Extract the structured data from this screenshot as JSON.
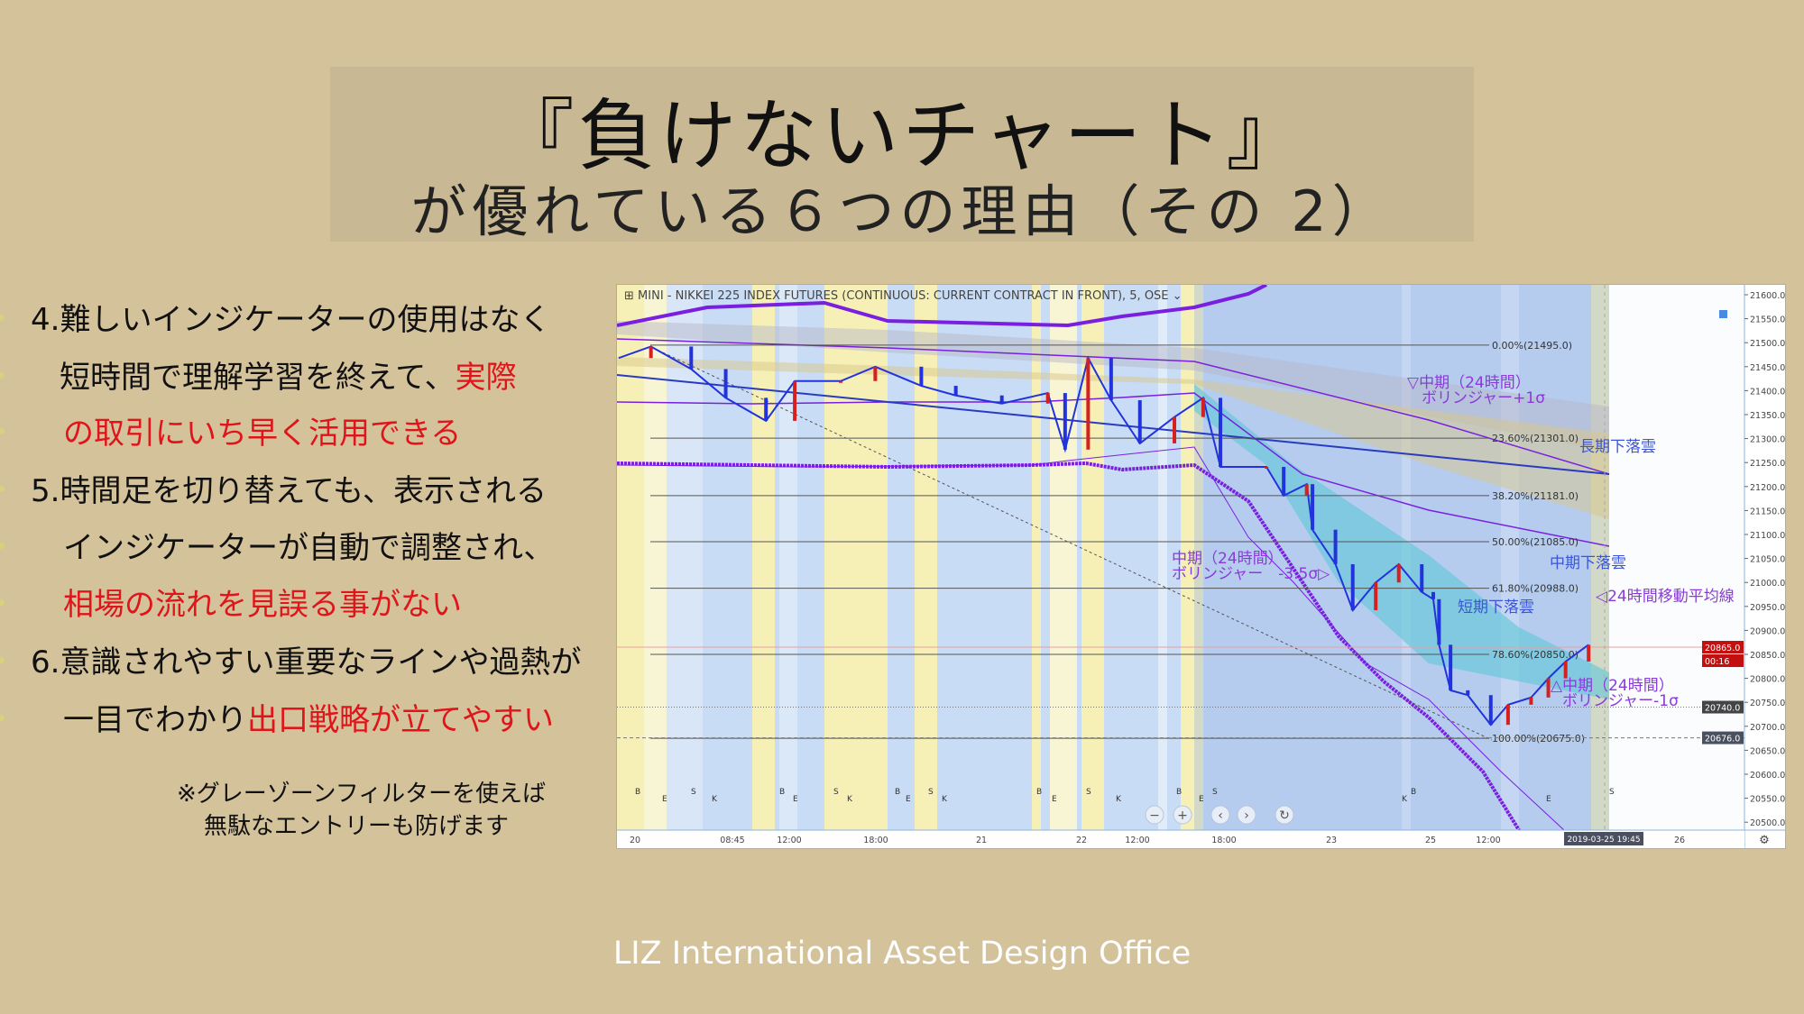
{
  "slide": {
    "title": "『負けないチャート』",
    "subtitle": "が優れている６つの理由（その 2）",
    "points": [
      {
        "parts": [
          {
            "text": "4.難しいインジケーターの使用はなく",
            "highlight": false
          }
        ]
      },
      {
        "parts": [
          {
            "text": "短時間で理解学習を終えて、",
            "highlight": false
          },
          {
            "text": "実際",
            "highlight": true
          }
        ]
      },
      {
        "parts": [
          {
            "text": "の取引にいち早く活用できる",
            "highlight": true
          }
        ]
      },
      {
        "parts": [
          {
            "text": "5.時間足を切り替えても、表示される",
            "highlight": false
          }
        ]
      },
      {
        "parts": [
          {
            "text": "インジケーターが自動で調整され、",
            "highlight": false
          }
        ]
      },
      {
        "parts": [
          {
            "text": "相場の流れを見誤る事がない",
            "highlight": true
          }
        ]
      },
      {
        "parts": [
          {
            "text": "6.意識されやすい重要なラインや過熱が",
            "highlight": false
          }
        ]
      },
      {
        "parts": [
          {
            "text": "一目でわかり",
            "highlight": false
          },
          {
            "text": "出口戦略が立てやすい",
            "highlight": true
          }
        ]
      }
    ],
    "note_line1": "※グレーゾーンフィルターを使えば",
    "note_line2": "無駄なエントリーも防げます",
    "footer": "LIZ International Asset Design Office",
    "colors": {
      "background": "#d4c29b",
      "highlight": "#e0141b",
      "title_box": "#c8b894"
    }
  },
  "chart": {
    "symbol_title": "MINI - NIKKEI 225 INDEX FUTURES (CONTINUOUS: CURRENT CONTRACT IN FRONT), 5, OSE",
    "price_axis": [
      "21600.0",
      "21550.0",
      "21500.0",
      "21450.0",
      "21400.0",
      "21350.0",
      "21300.0",
      "21250.0",
      "21200.0",
      "21150.0",
      "21100.0",
      "21050.0",
      "21000.0",
      "20950.0",
      "20900.0",
      "20850.0",
      "20800.0",
      "20750.0",
      "20700.0",
      "20650.0",
      "20600.0",
      "20550.0",
      "20500.0"
    ],
    "time_axis": [
      "20",
      "08:45",
      "12:00",
      "18:00",
      "21",
      "22",
      "12:00",
      "18:00",
      "23",
      "25",
      "12:00",
      "26"
    ],
    "time_cursor": "2019-03-25  19:45",
    "last_price": "20865.0",
    "countdown": "00:16",
    "marker_price_1": "20740.0",
    "marker_price_2": "20676.0",
    "fib_levels": [
      {
        "label": "0.00%(21495.0)",
        "price": 21495
      },
      {
        "label": "23.60%(21301.0)",
        "price": 21301
      },
      {
        "label": "38.20%(21181.0)",
        "price": 21181
      },
      {
        "label": "50.00%(21085.0)",
        "price": 21085
      },
      {
        "label": "61.80%(20988.0)",
        "price": 20988
      },
      {
        "label": "78.60%(20850.0)",
        "price": 20850
      },
      {
        "label": "100.00%(20675.0)",
        "price": 20675
      }
    ],
    "price_path": [
      21468,
      21492,
      21445,
      21385,
      21337,
      21420,
      21420,
      21450,
      21410,
      21390,
      21373,
      21395,
      21277,
      21468,
      21380,
      21290,
      21345,
      21385,
      21241,
      21241,
      21181,
      21205,
      21110,
      21038,
      20942,
      21000,
      21038,
      20980,
      20965,
      20870,
      20775,
      20765,
      20703,
      20745,
      20760,
      20800,
      20835,
      20870
    ],
    "annotations": {
      "bb_plus1_l1": "▽中期（24時間）",
      "bb_plus1_l2": "ボリンジャー+1σ",
      "long_cloud": "長期下落雲",
      "mid_cloud": "中期下落雲",
      "ma24": "◁24時間移動平均線",
      "short_cloud": "短期下落雲",
      "bb_minus35_l1": "中期（24時間）",
      "bb_minus35_l2": "ボリンジャー　-3.5σ▷",
      "bb_minus1_l1": "△中期（24時間）",
      "bb_minus1_l2": "ボリンジャー-1σ"
    },
    "session_marks": [
      "B",
      "E",
      "S",
      "K"
    ],
    "controls": {
      "zoom_out": "−",
      "zoom_in": "+",
      "back": "‹",
      "forward": "›",
      "reset": "↻",
      "settings": "⚙"
    },
    "colors": {
      "up": "#d62020",
      "down": "#2233dd",
      "bollinger": "#7a1fe0",
      "annotation_purple": "#8a3ad8",
      "annotation_blue": "#3a55d8",
      "last_price_bg": "#c40f0f"
    }
  }
}
